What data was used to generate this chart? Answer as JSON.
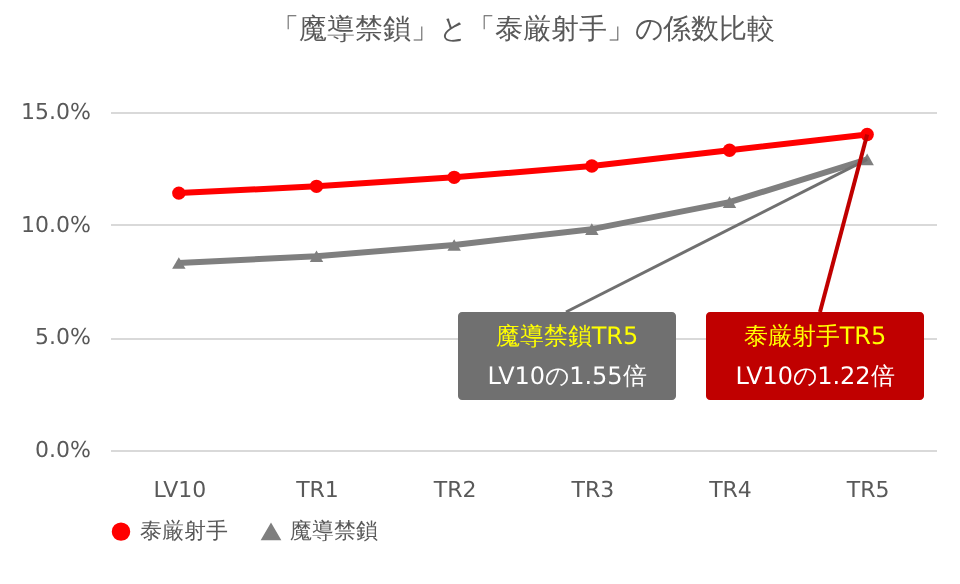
{
  "chart_data": {
    "type": "line",
    "title": "「魔導禁鎖」と「泰厳射手」の係数比較",
    "categories": [
      "LV10",
      "TR1",
      "TR2",
      "TR3",
      "TR4",
      "TR5"
    ],
    "series": [
      {
        "name": "泰厳射手",
        "color": "#ff0000",
        "marker": "circle",
        "values": [
          11.4,
          11.7,
          12.1,
          12.6,
          13.3,
          14.0
        ]
      },
      {
        "name": "魔導禁鎖",
        "color": "#7f7f7f",
        "marker": "triangle",
        "values": [
          8.3,
          8.6,
          9.1,
          9.8,
          11.0,
          12.9
        ]
      }
    ],
    "ylim": [
      0,
      15
    ],
    "yticks": [
      {
        "value": 0,
        "label": "0.0%"
      },
      {
        "value": 5,
        "label": "5.0%"
      },
      {
        "value": 10,
        "label": "10.0%"
      },
      {
        "value": 15,
        "label": "15.0%"
      }
    ],
    "grid": "y",
    "legend": "bottom",
    "line_style": "solid",
    "annotations": [
      {
        "text": "魔導禁鎖TR5\nLV10の1.55倍",
        "x": "TR5",
        "y": 12.9
      },
      {
        "text": "泰厳射手TR5\nLV10の1.22倍",
        "x": "TR5",
        "y": 14.0
      }
    ]
  }
}
